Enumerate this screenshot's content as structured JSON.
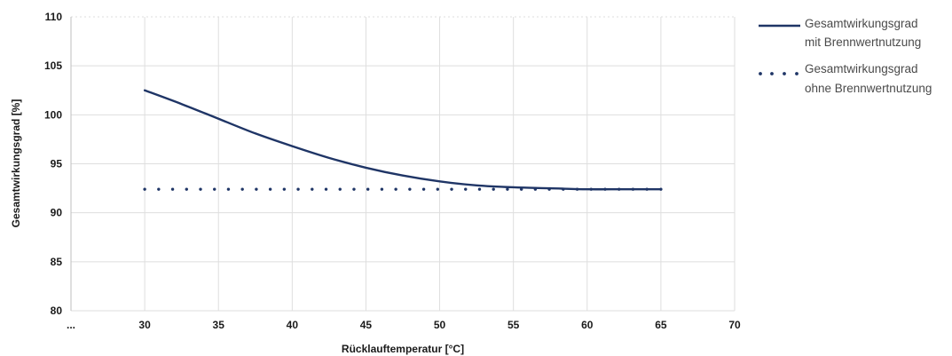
{
  "chart_data": {
    "type": "line",
    "xlabel": "Rücklauftemperatur [°C]",
    "ylabel": "Gesamtwirkungsgrad [%]",
    "x_ticks": [
      "...",
      "30",
      "35",
      "40",
      "45",
      "50",
      "55",
      "60",
      "65",
      "70"
    ],
    "x_tick_values": [
      25,
      30,
      35,
      40,
      45,
      50,
      55,
      60,
      65,
      70
    ],
    "xlim": [
      25,
      70
    ],
    "y_ticks": [
      80,
      85,
      90,
      95,
      100,
      105,
      110
    ],
    "ylim": [
      80,
      110
    ],
    "grid": true,
    "legend_position": "right",
    "series": [
      {
        "name_lines": [
          "Gesamtwirkungsgrad",
          "mit Brennwertnutzung"
        ],
        "style": "solid",
        "color": "#1f3566",
        "x": [
          30,
          32.5,
          35,
          37.5,
          40,
          42.5,
          45,
          47.5,
          50,
          52.5,
          55,
          57.5,
          60,
          62.5,
          65
        ],
        "y": [
          102.5,
          101.1,
          99.6,
          98.1,
          96.8,
          95.6,
          94.6,
          93.8,
          93.2,
          92.8,
          92.6,
          92.5,
          92.4,
          92.4,
          92.4
        ]
      },
      {
        "name_lines": [
          "Gesamtwirkungsgrad",
          "ohne Brennwertnutzung"
        ],
        "style": "dotted",
        "color": "#1f3566",
        "x": [
          30,
          65
        ],
        "y": [
          92.4,
          92.4
        ]
      }
    ]
  }
}
